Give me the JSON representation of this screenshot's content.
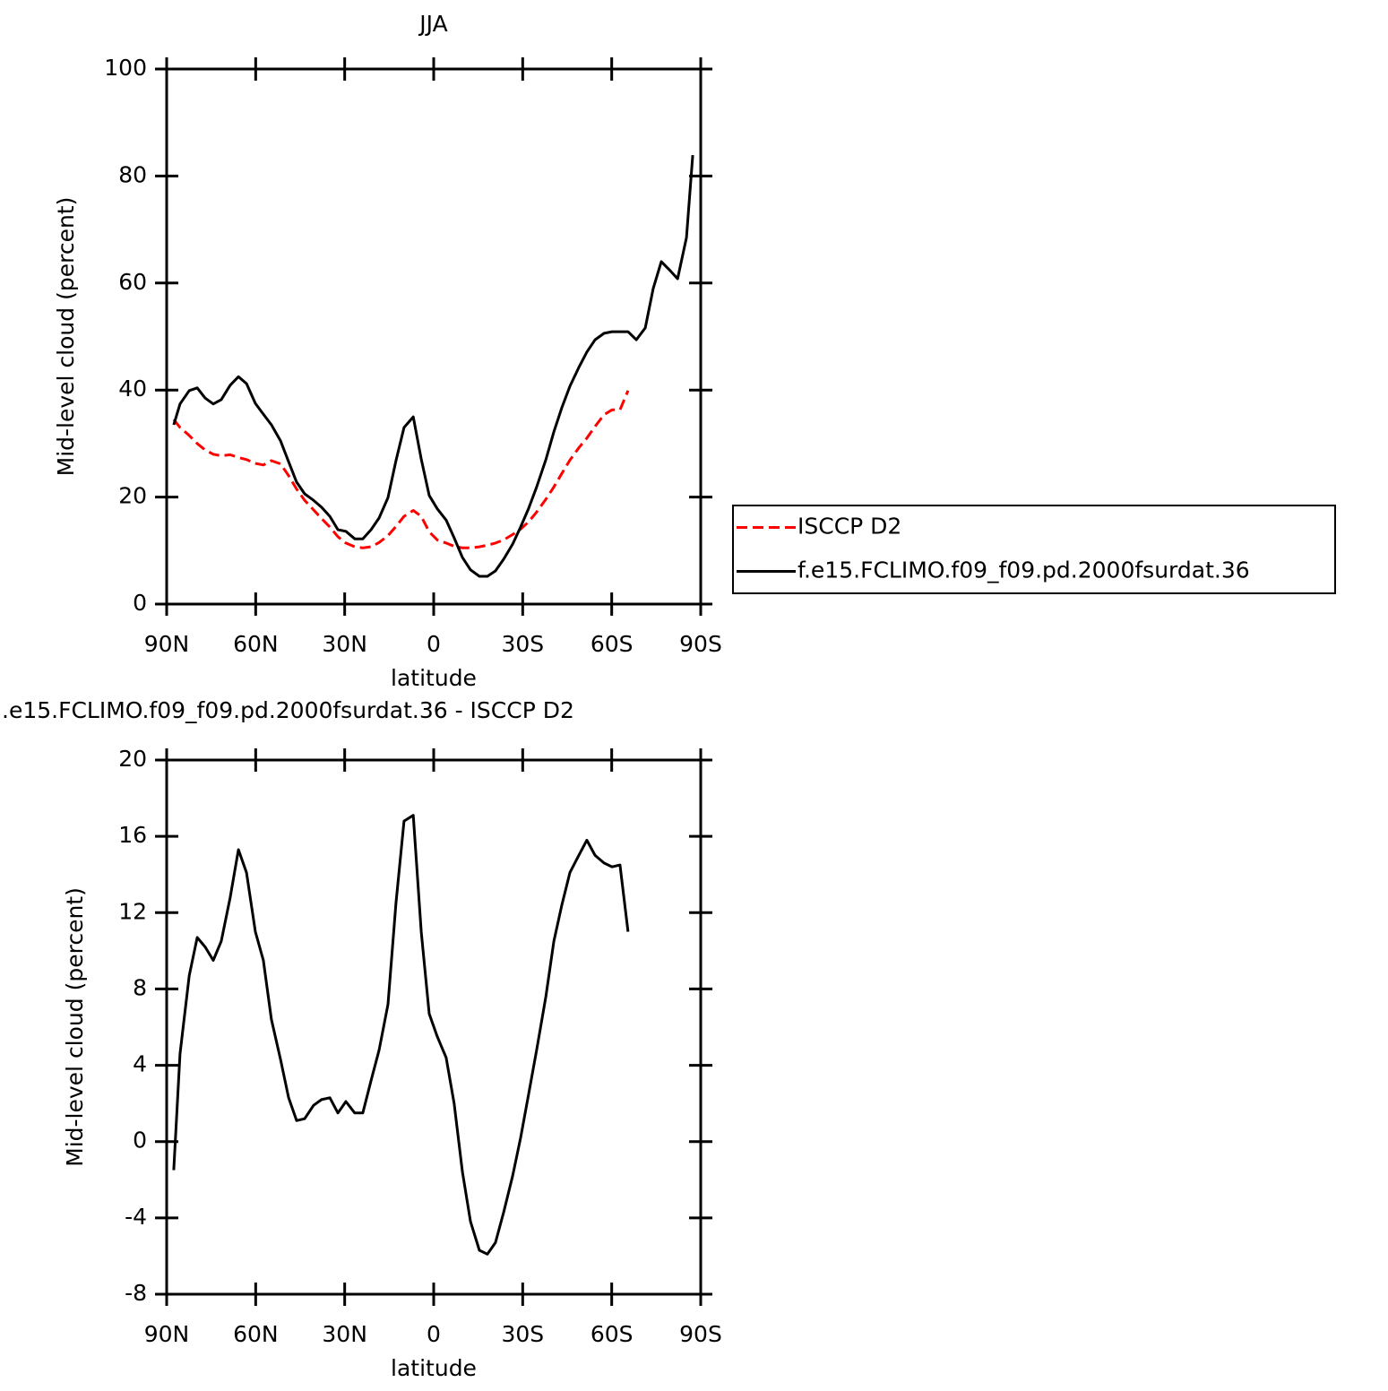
{
  "chart_data": [
    {
      "type": "line",
      "title": "JJA",
      "xlabel": "latitude",
      "ylabel": "Mid-level cloud (percent)",
      "xlim": [
        90,
        -90
      ],
      "xticks": [
        {
          "value": 90,
          "label": "90N"
        },
        {
          "value": 60,
          "label": "60N"
        },
        {
          "value": 30,
          "label": "30N"
        },
        0,
        {
          "value": -30,
          "label": "30S"
        },
        {
          "value": -60,
          "label": "60S"
        },
        {
          "value": -90,
          "label": "90S"
        }
      ],
      "ylim": [
        0,
        100
      ],
      "yticks": [
        0,
        20,
        40,
        60,
        80,
        100
      ],
      "legend": "right",
      "x": [
        87.6,
        85.5,
        82.4,
        79.7,
        77.0,
        74.3,
        71.6,
        68.6,
        65.8,
        63.1,
        60.1,
        57.4,
        54.7,
        51.6,
        48.9,
        46.2,
        43.5,
        40.5,
        37.8,
        35.0,
        32.3,
        29.6,
        26.6,
        23.9,
        21.1,
        18.4,
        15.4,
        12.7,
        10.0,
        6.9,
        4.2,
        1.5,
        -1.2,
        -4.2,
        -6.9,
        -9.7,
        -12.4,
        -15.4,
        -18.1,
        -20.8,
        -23.6,
        -26.6,
        -29.3,
        -32.0,
        -34.7,
        -37.8,
        -40.5,
        -43.2,
        -45.9,
        -48.9,
        -51.6,
        -54.4,
        -57.4,
        -60.1,
        -62.8,
        -65.5,
        -68.3,
        -71.3,
        -74.0,
        -76.7,
        -79.4,
        -82.2,
        -85.2,
        -87.3
      ],
      "series": [
        {
          "name": "ISCCP D2",
          "color": "#ff0000",
          "linestyle": "dashed",
          "values": [
            34.5,
            33,
            31.5,
            30,
            28.8,
            28,
            27.7,
            27.9,
            27.4,
            27,
            26.3,
            26,
            26.8,
            26.2,
            24,
            21.5,
            19.4,
            17.6,
            16,
            14.4,
            12.6,
            11.4,
            10.7,
            10.5,
            10.7,
            11.5,
            12.8,
            14.5,
            16.4,
            17.5,
            16.4,
            13.5,
            12,
            11.4,
            10.8,
            10.5,
            10.5,
            10.7,
            11,
            11.4,
            12,
            13,
            14,
            15.4,
            17.2,
            19.6,
            21.9,
            24.4,
            26.9,
            29.2,
            31,
            33.2,
            35.4,
            36.3,
            36.3,
            39.9,
            null,
            null,
            null,
            null,
            null,
            null,
            null,
            null
          ]
        },
        {
          "name": "f.e15.FCLIMO.f09_f09.pd.2000fsurdat.36",
          "color": "#000000",
          "linestyle": "solid",
          "values": [
            33.5,
            37.4,
            39.9,
            40.4,
            38.5,
            37.4,
            38.2,
            40.9,
            42.5,
            41.2,
            37.5,
            35.5,
            33.5,
            30.5,
            26.6,
            22.8,
            20.6,
            19.4,
            18.1,
            16.4,
            13.9,
            13.6,
            12.2,
            12.2,
            13.9,
            16.1,
            19.9,
            26.8,
            33,
            35,
            27.1,
            20.3,
            17.8,
            15.7,
            12.4,
            8.7,
            6.4,
            5.2,
            5.2,
            6.2,
            8.4,
            11.2,
            14.4,
            17.9,
            21.9,
            27,
            32.2,
            36.7,
            40.7,
            44.2,
            47.1,
            49.4,
            50.6,
            50.9,
            50.9,
            50.9,
            49.4,
            51.6,
            59,
            64,
            62.5,
            60.8,
            68.5,
            83.9
          ]
        }
      ]
    },
    {
      "type": "line",
      "title": ".e15.FCLIMO.f09_f09.pd.2000fsurdat.36 - ISCCP D2",
      "xlabel": "latitude",
      "ylabel": "Mid-level cloud (percent)",
      "xlim": [
        90,
        -90
      ],
      "xticks": [
        {
          "value": 90,
          "label": "90N"
        },
        {
          "value": 60,
          "label": "60N"
        },
        {
          "value": 30,
          "label": "30N"
        },
        0,
        {
          "value": -30,
          "label": "30S"
        },
        {
          "value": -60,
          "label": "60S"
        },
        {
          "value": -90,
          "label": "90S"
        }
      ],
      "ylim": [
        -8,
        20
      ],
      "yticks": [
        -8,
        -4,
        0,
        4,
        8,
        12,
        16,
        20
      ],
      "x": [
        87.6,
        85.5,
        82.4,
        79.7,
        77.0,
        74.3,
        71.6,
        68.6,
        65.8,
        63.1,
        60.1,
        57.4,
        54.7,
        51.6,
        48.9,
        46.2,
        43.5,
        40.5,
        37.8,
        35.0,
        32.3,
        29.6,
        26.6,
        23.9,
        21.1,
        18.4,
        15.4,
        12.7,
        10.0,
        6.9,
        4.2,
        1.5,
        -1.2,
        -4.2,
        -6.9,
        -9.7,
        -12.4,
        -15.4,
        -18.1,
        -20.8,
        -23.6,
        -26.6,
        -29.3,
        -32.0,
        -34.7,
        -37.8,
        -40.5,
        -43.2,
        -45.9,
        -48.9,
        -51.6,
        -54.4,
        -57.4,
        -60.1,
        -62.8,
        -65.5
      ],
      "series": [
        {
          "color": "#000000",
          "linestyle": "solid",
          "values": [
            -1.5,
            4.6,
            8.7,
            10.7,
            10.2,
            9.5,
            10.5,
            12.8,
            15.3,
            14.1,
            11,
            9.5,
            6.4,
            4.3,
            2.3,
            1.1,
            1.2,
            1.9,
            2.2,
            2.3,
            1.5,
            2.1,
            1.5,
            1.5,
            3.2,
            4.8,
            7.2,
            12.5,
            16.8,
            17.1,
            11,
            6.7,
            5.5,
            4.4,
            2,
            -1.6,
            -4.2,
            -5.7,
            -5.9,
            -5.3,
            -3.7,
            -1.8,
            0.2,
            2.5,
            4.8,
            7.6,
            10.5,
            12.4,
            14.1,
            15,
            15.8,
            15,
            14.6,
            14.4,
            14.5,
            11
          ]
        }
      ]
    }
  ]
}
